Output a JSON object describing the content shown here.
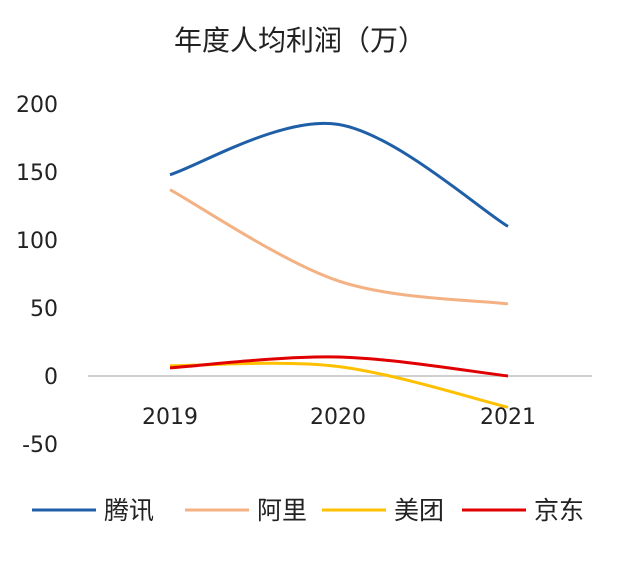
{
  "chart_data": {
    "type": "line",
    "title": "年度人均利润（万）",
    "categories": [
      "2019",
      "2020",
      "2021"
    ],
    "ylim": [
      -50,
      200
    ],
    "yticks": [
      200,
      150,
      100,
      50,
      0,
      -50
    ],
    "grid": false,
    "smooth": true,
    "legend_position": "bottom",
    "series": [
      {
        "name": "腾讯",
        "color": "#1f5fa8",
        "values": [
          148,
          185,
          110
        ]
      },
      {
        "name": "阿里",
        "color": "#f4b183",
        "values": [
          137,
          70,
          53
        ]
      },
      {
        "name": "美团",
        "color": "#ffc000",
        "values": [
          7.5,
          7,
          -23
        ]
      },
      {
        "name": "京东",
        "color": "#e00000",
        "values": [
          6,
          14,
          0
        ]
      }
    ]
  }
}
